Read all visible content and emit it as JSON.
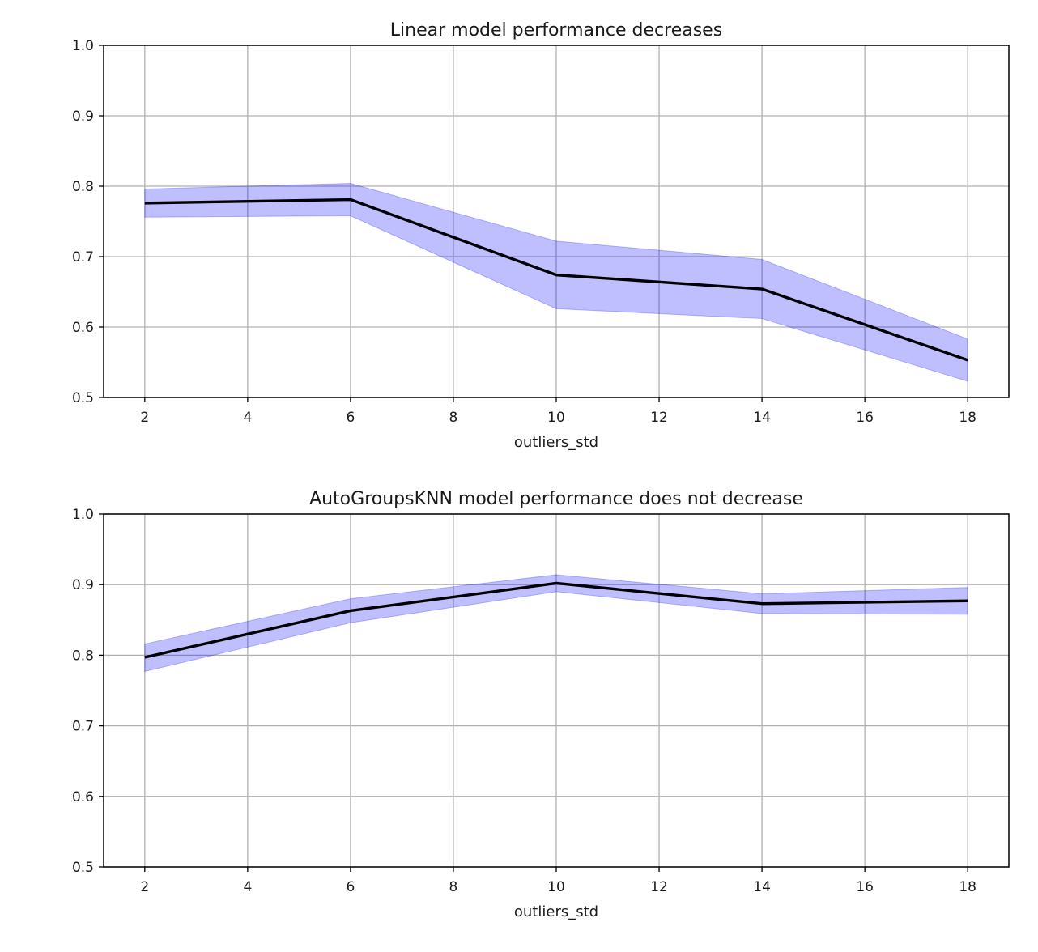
{
  "colors": {
    "band": "#0000ff",
    "band_opacity": 0.25,
    "line": "#000000",
    "grid": "#b0b0b0",
    "axes": "#000000"
  },
  "chart_data": [
    {
      "type": "line",
      "title": "Linear model performance decreases",
      "xlabel": "outliers_std",
      "ylabel": "",
      "x": [
        2,
        6,
        10,
        14,
        18
      ],
      "series": [
        {
          "values": [
            0.776,
            0.781,
            0.674,
            0.654,
            0.553
          ],
          "lower": [
            0.756,
            0.758,
            0.626,
            0.612,
            0.523
          ],
          "upper": [
            0.796,
            0.804,
            0.722,
            0.696,
            0.583
          ]
        }
      ],
      "xlim": [
        1.2,
        18.8
      ],
      "ylim": [
        0.5,
        1.0
      ],
      "xticks": [
        2,
        4,
        6,
        8,
        10,
        12,
        14,
        16,
        18
      ],
      "yticks": [
        "0.5",
        "0.6",
        "0.7",
        "0.8",
        "0.9",
        "1.0"
      ],
      "grid": true
    },
    {
      "type": "line",
      "title": "AutoGroupsKNN model performance does not decrease",
      "xlabel": "outliers_std",
      "ylabel": "",
      "x": [
        2,
        6,
        10,
        14,
        18
      ],
      "series": [
        {
          "values": [
            0.797,
            0.863,
            0.902,
            0.873,
            0.877
          ],
          "lower": [
            0.777,
            0.846,
            0.89,
            0.859,
            0.858
          ],
          "upper": [
            0.816,
            0.88,
            0.914,
            0.887,
            0.896
          ]
        }
      ],
      "xlim": [
        1.2,
        18.8
      ],
      "ylim": [
        0.5,
        1.0
      ],
      "xticks": [
        2,
        4,
        6,
        8,
        10,
        12,
        14,
        16,
        18
      ],
      "yticks": [
        "0.5",
        "0.6",
        "0.7",
        "0.8",
        "0.9",
        "1.0"
      ],
      "grid": true
    }
  ]
}
